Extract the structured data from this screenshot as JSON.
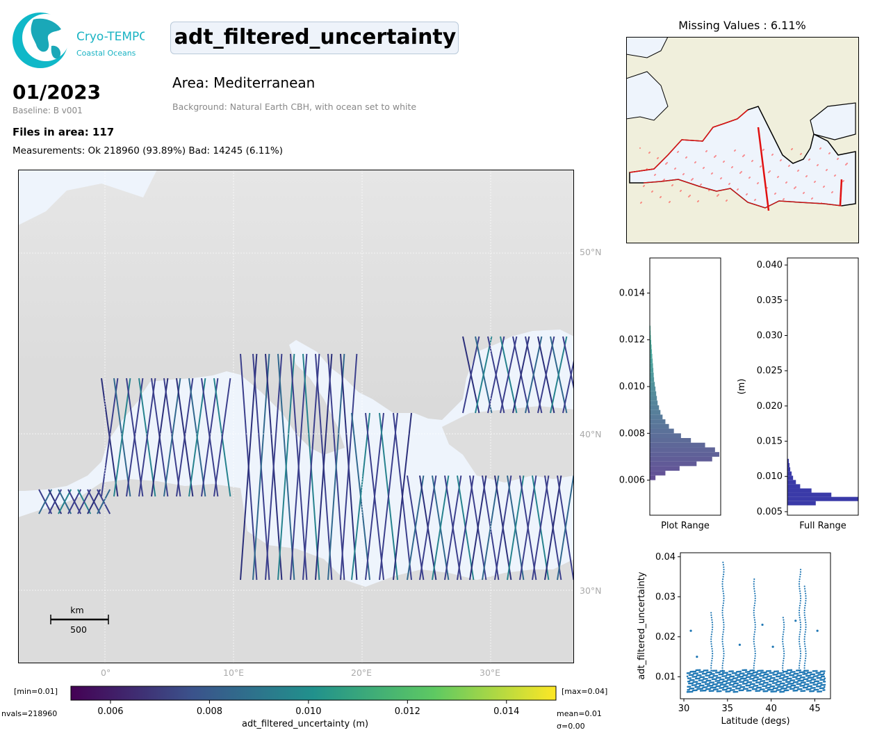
{
  "header": {
    "logo_line1": "Cryo-TEMPO",
    "logo_line2": "Coastal Oceans",
    "title": "adt_filtered_uncertainty",
    "date": "01/2023",
    "baseline": "Baseline: B v001",
    "area": "Area: Mediterranean",
    "background_note": "Background: Natural Earth CBH, with ocean set to white",
    "files": "Files in area: 117",
    "measurements": "Measurements: Ok 218960 (93.89%) Bad: 14245 (6.11%)"
  },
  "main_map": {
    "lat_labels": [
      "50°N",
      "40°N",
      "30°N"
    ],
    "lon_labels": [
      "0°",
      "10°E",
      "20°E",
      "30°E"
    ],
    "scale_unit": "km",
    "scale_value": "500"
  },
  "colorbar": {
    "min_label": "[min=0.01]",
    "max_label": "[max=0.04]",
    "nvals": "nvals=218960",
    "mean": "mean=0.01",
    "sigma": "σ=0.00",
    "ticks": [
      "0.006",
      "0.008",
      "0.010",
      "0.012",
      "0.014"
    ],
    "label": "adt_filtered_uncertainty (m)",
    "colors": [
      "#440154",
      "#3b528b",
      "#21918c",
      "#5ec962",
      "#fde725"
    ]
  },
  "mini_map": {
    "title": "Missing Values : 6.11%"
  },
  "chart_data": [
    {
      "type": "bar",
      "orientation": "horizontal",
      "xlabel": "Plot Range",
      "ylabel": "",
      "ylim": [
        0.0045,
        0.0155
      ],
      "yticks": [
        "0.006",
        "0.008",
        "0.010",
        "0.012",
        "0.014"
      ],
      "bin_centers": [
        0.0061,
        0.0063,
        0.0065,
        0.0067,
        0.0069,
        0.0071,
        0.0073,
        0.0075,
        0.0077,
        0.0079,
        0.0081,
        0.0083,
        0.0085,
        0.0087,
        0.0089,
        0.0091,
        0.0093,
        0.0095,
        0.0097,
        0.0099,
        0.0101,
        0.0103,
        0.0105,
        0.0107,
        0.0109,
        0.0111,
        0.0113,
        0.0115,
        0.0117,
        0.0119,
        0.0121,
        0.0123,
        0.0125
      ],
      "values": [
        0.08,
        0.22,
        0.42,
        0.66,
        0.88,
        0.98,
        0.92,
        0.78,
        0.58,
        0.44,
        0.34,
        0.27,
        0.22,
        0.18,
        0.15,
        0.13,
        0.11,
        0.1,
        0.09,
        0.08,
        0.07,
        0.06,
        0.055,
        0.05,
        0.045,
        0.04,
        0.035,
        0.03,
        0.025,
        0.02,
        0.015,
        0.012,
        0.01
      ]
    },
    {
      "type": "bar",
      "orientation": "horizontal",
      "xlabel": "Full Range",
      "ylabel": "(m)",
      "ylim": [
        0.0045,
        0.041
      ],
      "yticks": [
        "0.005",
        "0.010",
        "0.015",
        "0.020",
        "0.025",
        "0.030",
        "0.035",
        "0.040"
      ],
      "bin_centers": [
        0.0062,
        0.0068,
        0.0074,
        0.008,
        0.0086,
        0.0092,
        0.0098,
        0.0104,
        0.011,
        0.0116,
        0.0122
      ],
      "values": [
        0.4,
        1.0,
        0.62,
        0.34,
        0.18,
        0.12,
        0.08,
        0.06,
        0.04,
        0.03,
        0.02
      ]
    },
    {
      "type": "scatter",
      "xlabel": "Latitude (degs)",
      "ylabel": "adt_filtered_uncertainty",
      "xlim": [
        29.6,
        46.8
      ],
      "ylim": [
        0.0045,
        0.041
      ],
      "xticks": [
        "30",
        "35",
        "40",
        "45"
      ],
      "yticks": [
        "0.01",
        "0.02",
        "0.03",
        "0.04"
      ],
      "series_color": "#1f77b4",
      "spikes": [
        {
          "x": 34.5,
          "ymax": 0.039
        },
        {
          "x": 43.9,
          "ymax": 0.033
        },
        {
          "x": 33.2,
          "ymax": 0.026
        },
        {
          "x": 41.4,
          "ymax": 0.025
        },
        {
          "x": 38.1,
          "ymax": 0.035
        },
        {
          "x": 43.3,
          "ymax": 0.037
        }
      ],
      "scatter_points": [
        {
          "x": 30.8,
          "y": 0.0215
        },
        {
          "x": 45.3,
          "y": 0.0215
        },
        {
          "x": 42.8,
          "y": 0.024
        },
        {
          "x": 39.0,
          "y": 0.023
        },
        {
          "x": 36.4,
          "y": 0.018
        },
        {
          "x": 40.2,
          "y": 0.0175
        },
        {
          "x": 31.5,
          "y": 0.015
        }
      ]
    }
  ]
}
